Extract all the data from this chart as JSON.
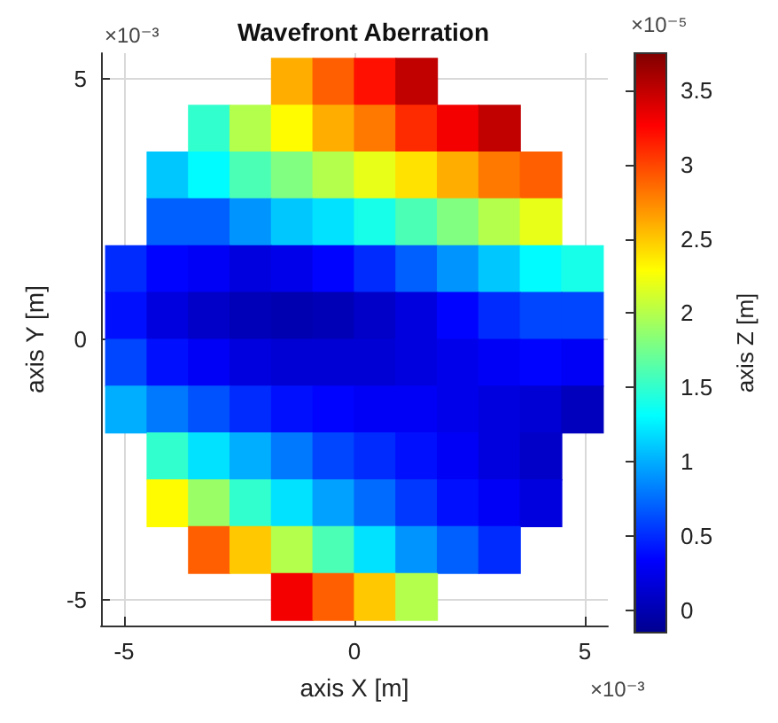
{
  "chart_data": {
    "type": "scatter",
    "title": "Wavefront Aberration",
    "xlabel": "axis X [m]",
    "ylabel": "axis Y [m]",
    "clabel": "axis Z [m]",
    "annotations": [
      "×10⁻³",
      "×10⁻³",
      "×10⁻⁵"
    ],
    "xlim": [
      -5.5,
      5.5
    ],
    "xticks": [
      -5,
      0,
      5
    ],
    "ylim": [
      -5.5,
      5.5
    ],
    "yticks": [
      -5,
      0,
      5
    ],
    "clim": [
      -0.15,
      3.75
    ],
    "cticks": [
      0,
      0.5,
      1,
      1.5,
      2,
      2.5,
      3,
      3.5
    ],
    "grid": true,
    "marker": "square",
    "x": [
      -1.35,
      -0.45,
      0.45,
      1.35,
      -3.15,
      -2.25,
      -1.35,
      -0.45,
      0.45,
      1.35,
      2.25,
      3.15,
      -4.05,
      -3.15,
      -2.25,
      -1.35,
      -0.45,
      0.45,
      1.35,
      2.25,
      3.15,
      4.05,
      -4.05,
      -3.15,
      -2.25,
      -1.35,
      -0.45,
      0.45,
      1.35,
      2.25,
      3.15,
      4.05,
      -4.95,
      -4.05,
      -3.15,
      -2.25,
      -1.35,
      -0.45,
      0.45,
      1.35,
      2.25,
      3.15,
      4.05,
      4.95,
      -4.95,
      -4.05,
      -3.15,
      -2.25,
      -1.35,
      -0.45,
      0.45,
      1.35,
      2.25,
      3.15,
      4.05,
      4.95,
      -4.95,
      -4.05,
      -3.15,
      -2.25,
      -1.35,
      -0.45,
      0.45,
      1.35,
      2.25,
      3.15,
      4.05,
      4.95,
      -4.95,
      -4.05,
      -3.15,
      -2.25,
      -1.35,
      -0.45,
      0.45,
      1.35,
      2.25,
      3.15,
      4.05,
      4.95,
      -4.05,
      -3.15,
      -2.25,
      -1.35,
      -0.45,
      0.45,
      1.35,
      2.25,
      3.15,
      4.05,
      -4.05,
      -3.15,
      -2.25,
      -1.35,
      -0.45,
      0.45,
      1.35,
      2.25,
      3.15,
      4.05,
      -3.15,
      -2.25,
      -1.35,
      -0.45,
      0.45,
      1.35,
      2.25,
      3.15,
      -1.35,
      -0.45,
      0.45,
      1.35
    ],
    "values": [
      4.95,
      4.95,
      4.95,
      4.95,
      4.05,
      4.05,
      4.05,
      4.05,
      4.05,
      4.05,
      4.05,
      4.05,
      3.15,
      3.15,
      3.15,
      3.15,
      3.15,
      3.15,
      3.15,
      3.15,
      3.15,
      3.15,
      2.25,
      2.25,
      2.25,
      2.25,
      2.25,
      2.25,
      2.25,
      2.25,
      2.25,
      2.25,
      1.35,
      1.35,
      1.35,
      1.35,
      1.35,
      1.35,
      1.35,
      1.35,
      1.35,
      1.35,
      1.35,
      1.35,
      0.45,
      0.45,
      0.45,
      0.45,
      0.45,
      0.45,
      0.45,
      0.45,
      0.45,
      0.45,
      0.45,
      0.45,
      -0.45,
      -0.45,
      -0.45,
      -0.45,
      -0.45,
      -0.45,
      -0.45,
      -0.45,
      -0.45,
      -0.45,
      -0.45,
      -0.45,
      -1.35,
      -1.35,
      -1.35,
      -1.35,
      -1.35,
      -1.35,
      -1.35,
      -1.35,
      -1.35,
      -1.35,
      -1.35,
      -1.35,
      -2.25,
      -2.25,
      -2.25,
      -2.25,
      -2.25,
      -2.25,
      -2.25,
      -2.25,
      -2.25,
      -2.25,
      -3.15,
      -3.15,
      -3.15,
      -3.15,
      -3.15,
      -3.15,
      -3.15,
      -3.15,
      -3.15,
      -3.15,
      -4.05,
      -4.05,
      -4.05,
      -4.05,
      -4.05,
      -4.05,
      -4.05,
      -4.05,
      -4.95,
      -4.95,
      -4.95,
      -4.95
    ],
    "cvalues": [
      2.6,
      2.9,
      3.2,
      3.5,
      1.5,
      2.0,
      2.3,
      2.6,
      2.8,
      3.1,
      3.3,
      3.5,
      1.1,
      1.3,
      1.6,
      1.8,
      2.0,
      2.2,
      2.4,
      2.6,
      2.8,
      2.9,
      0.7,
      0.7,
      0.9,
      1.1,
      1.2,
      1.4,
      1.6,
      1.8,
      2.0,
      2.2,
      0.5,
      0.35,
      0.3,
      0.2,
      0.25,
      0.35,
      0.5,
      0.7,
      0.9,
      1.1,
      1.3,
      1.4,
      0.4,
      0.2,
      0.1,
      0.03,
      0.0,
      0.02,
      0.1,
      0.2,
      0.35,
      0.5,
      0.6,
      0.6,
      0.6,
      0.4,
      0.3,
      0.2,
      0.15,
      0.15,
      0.15,
      0.2,
      0.25,
      0.3,
      0.35,
      0.3,
      1.0,
      0.8,
      0.65,
      0.5,
      0.4,
      0.35,
      0.3,
      0.3,
      0.25,
      0.2,
      0.15,
      0.05,
      1.5,
      1.2,
      1.0,
      0.8,
      0.6,
      0.5,
      0.4,
      0.3,
      0.2,
      0.1,
      2.3,
      1.9,
      1.5,
      1.2,
      0.95,
      0.75,
      0.55,
      0.4,
      0.3,
      0.2,
      2.9,
      2.5,
      2.0,
      1.6,
      1.2,
      0.9,
      0.7,
      0.5,
      3.3,
      2.9,
      2.5,
      2.0
    ]
  }
}
